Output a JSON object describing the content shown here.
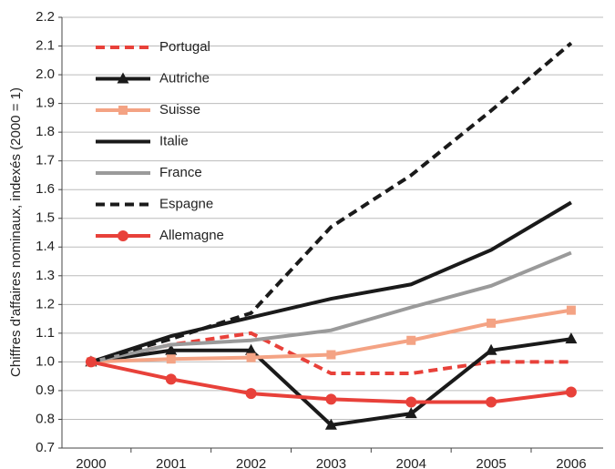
{
  "chart_data": {
    "type": "line",
    "ylabel": "Chiffres d'affaires nominaux, indexés (2000 = 1)",
    "categories": [
      "2000",
      "2001",
      "2002",
      "2003",
      "2004",
      "2005",
      "2006"
    ],
    "ylim": [
      0.7,
      2.2
    ],
    "yticks": [
      0.7,
      0.8,
      0.9,
      {
        "value": 1.0,
        "label": "1.0"
      },
      1.1,
      1.2,
      1.3,
      1.4,
      1.5,
      1.6,
      1.7,
      1.8,
      1.9,
      {
        "value": 2.0,
        "label": "2.0"
      },
      2.1,
      2.2
    ],
    "grid": true,
    "legend": "upper left",
    "series": [
      {
        "name": "Portugal",
        "color": "#e8413a",
        "dash": true,
        "marker": "none",
        "values": [
          1.0,
          1.06,
          1.1,
          0.96,
          0.96,
          1.0,
          1.0
        ]
      },
      {
        "name": "Autriche",
        "color": "#1a1a1a",
        "dash": false,
        "marker": "triangle",
        "values": [
          1.0,
          1.04,
          1.04,
          0.78,
          0.82,
          1.04,
          1.08
        ]
      },
      {
        "name": "Suisse",
        "color": "#f4a384",
        "dash": false,
        "marker": "square",
        "values": [
          1.0,
          1.01,
          1.015,
          1.025,
          1.075,
          1.135,
          1.18
        ]
      },
      {
        "name": "Italie",
        "color": "#1a1a1a",
        "dash": false,
        "marker": "none",
        "values": [
          1.0,
          1.09,
          1.155,
          1.22,
          1.27,
          1.39,
          1.555
        ]
      },
      {
        "name": "France",
        "color": "#9a9a9a",
        "dash": false,
        "marker": "none",
        "values": [
          1.0,
          1.06,
          1.075,
          1.11,
          1.19,
          1.265,
          1.38
        ]
      },
      {
        "name": "Espagne",
        "color": "#1a1a1a",
        "dash": true,
        "marker": "none",
        "values": [
          1.0,
          1.08,
          1.17,
          1.47,
          1.65,
          1.875,
          2.11
        ]
      },
      {
        "name": "Allemagne",
        "color": "#e8413a",
        "dash": false,
        "marker": "circle",
        "values": [
          1.0,
          0.94,
          0.89,
          0.87,
          0.86,
          0.86,
          0.895
        ]
      }
    ]
  }
}
